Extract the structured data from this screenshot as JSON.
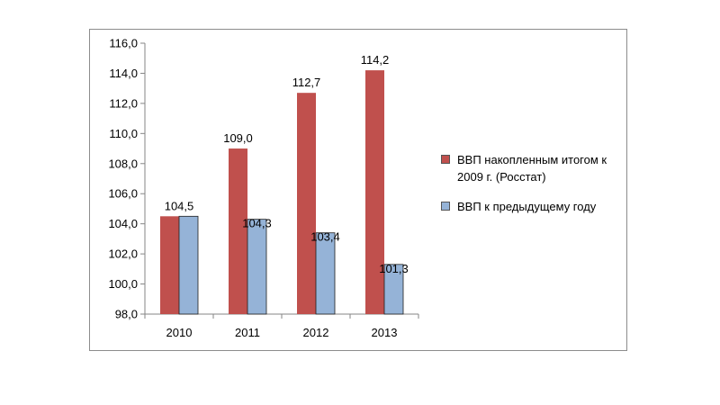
{
  "chart_data": {
    "type": "bar",
    "title": "",
    "xlabel": "",
    "ylabel": "",
    "categories": [
      "2010",
      "2011",
      "2012",
      "2013"
    ],
    "ylim": [
      98.0,
      116.0
    ],
    "yticks": [
      "98,0",
      "100,0",
      "102,0",
      "104,0",
      "106,0",
      "108,0",
      "110,0",
      "112,0",
      "114,0",
      "116,0"
    ],
    "grid": false,
    "legend_position": "right",
    "series": [
      {
        "name": "ВВП накопленным итогом к 2009 г. (Росстат)",
        "color": "#c0504d",
        "values": [
          104.5,
          109.0,
          112.7,
          114.2
        ],
        "labels": [
          "104,5",
          "109,0",
          "112,7",
          "114,2"
        ]
      },
      {
        "name": "ВВП к предыдущему году",
        "color": "#95b3d7",
        "values": [
          104.5,
          104.3,
          103.4,
          101.3
        ],
        "labels": [
          "",
          "104,3",
          "103,4",
          "101,3"
        ]
      }
    ]
  }
}
